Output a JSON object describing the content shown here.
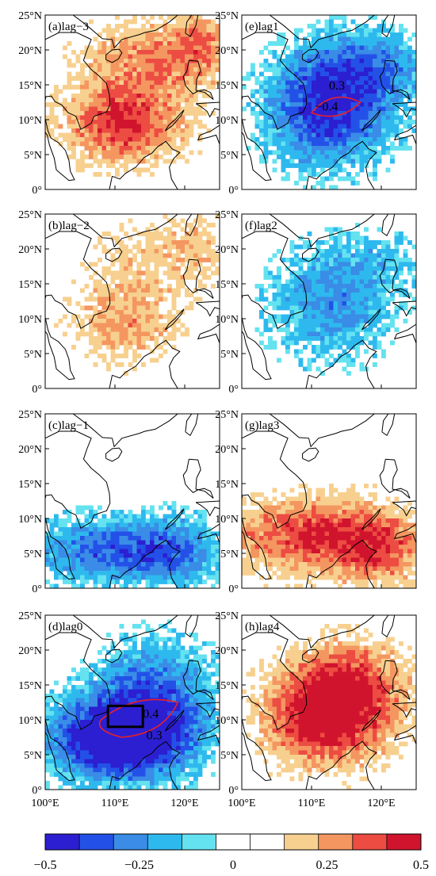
{
  "panels": [
    {
      "id": "a",
      "label": "(a)lag−3",
      "pattern": "warm",
      "amp": 0.75
    },
    {
      "id": "e",
      "label": "(e)lag1",
      "pattern": "cool",
      "amp": 0.75,
      "contours": [
        "0.3",
        "−0.4"
      ]
    },
    {
      "id": "b",
      "label": "(b)lag−2",
      "pattern": "warm",
      "amp": 0.45
    },
    {
      "id": "f",
      "label": "(f)lag2",
      "pattern": "cool",
      "amp": 0.4
    },
    {
      "id": "c",
      "label": "(c)lag−1",
      "pattern": "coolsouth",
      "amp": 0.6
    },
    {
      "id": "g",
      "label": "(g)lag3",
      "pattern": "warmsouth",
      "amp": 0.65
    },
    {
      "id": "d",
      "label": "(d)lag0",
      "pattern": "coolstrong",
      "amp": 0.9,
      "contours": [
        "0.4",
        "0.3"
      ]
    },
    {
      "id": "h",
      "label": "(h)lag4",
      "pattern": "warmstrong",
      "amp": 0.8
    }
  ],
  "lat_ticks": [
    "0°",
    "5°N",
    "10°N",
    "15°N",
    "20°N",
    "25°N"
  ],
  "lon_ticks": [
    "100°E",
    "110°E",
    "120°E"
  ],
  "colorbar": {
    "colors": [
      "#2b1fd1",
      "#2351e8",
      "#3a8ce6",
      "#2eb9ee",
      "#64e2f0",
      "#ffffff",
      "#ffffff",
      "#f7d08f",
      "#f49660",
      "#ec4c42",
      "#d1142d"
    ],
    "tick_labels": [
      "−0.5",
      "−0.25",
      "0",
      "0.25",
      "0.5"
    ],
    "tick_values": [
      -0.5,
      -0.25,
      0,
      0.25,
      0.5
    ],
    "range": [
      -0.5,
      0.5
    ]
  }
}
